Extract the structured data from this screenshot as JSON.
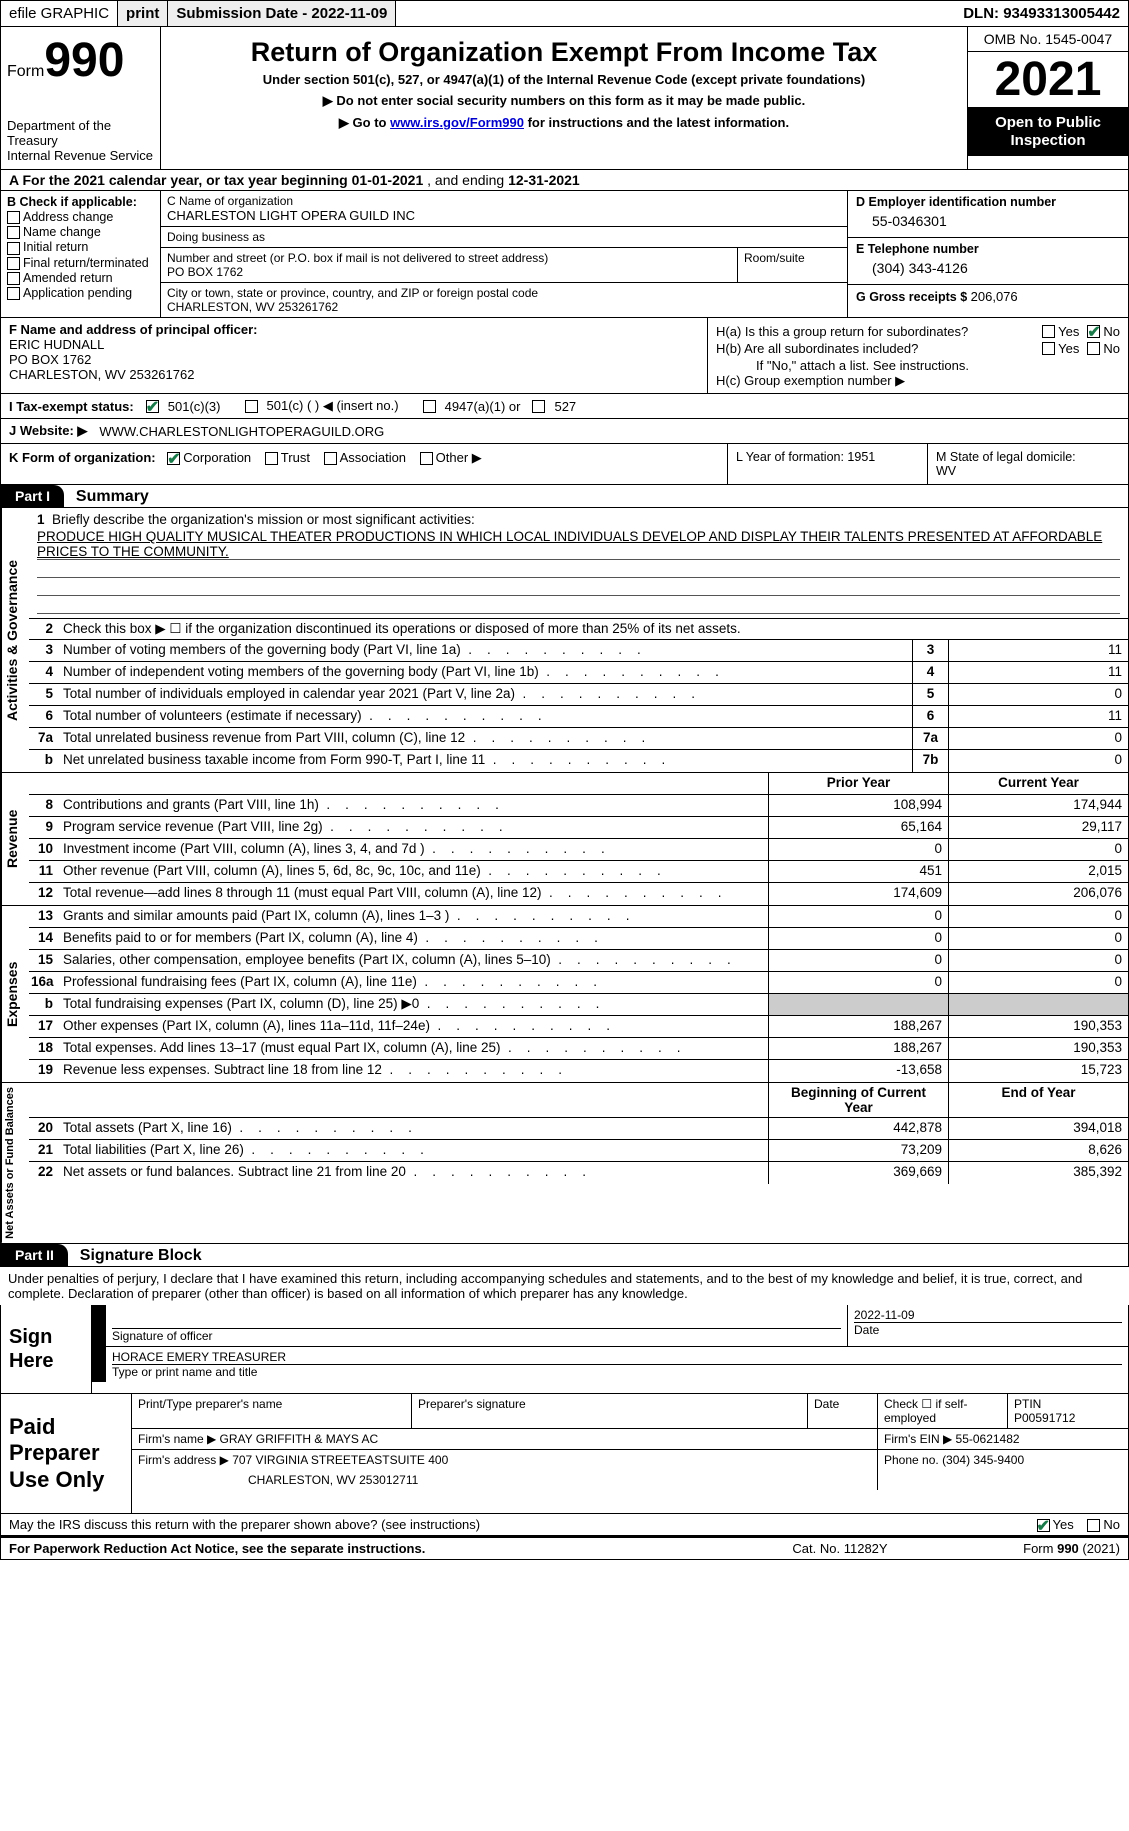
{
  "topbar": {
    "efile": "efile GRAPHIC",
    "print": "print",
    "sub_label": "Submission Date - ",
    "sub_date": "2022-11-09",
    "dln_label": "DLN: ",
    "dln": "93493313005442"
  },
  "header": {
    "form_word": "Form",
    "form_num": "990",
    "dept": "Department of the Treasury\nInternal Revenue Service",
    "title": "Return of Organization Exempt From Income Tax",
    "sub1": "Under section 501(c), 527, or 4947(a)(1) of the Internal Revenue Code (except private foundations)",
    "sub2": "▶ Do not enter social security numbers on this form as it may be made public.",
    "sub3_a": "▶ Go to ",
    "sub3_link": "www.irs.gov/Form990",
    "sub3_b": " for instructions and the latest information.",
    "omb": "OMB No. 1545-0047",
    "year": "2021",
    "inspect": "Open to Public Inspection"
  },
  "row_a": {
    "prefix": "A  For the 2021 calendar year, or tax year beginning ",
    "begin": "01-01-2021",
    "mid": "   , and ending ",
    "end": "12-31-2021"
  },
  "col_b": {
    "label": "B Check if applicable:",
    "items": [
      "Address change",
      "Name change",
      "Initial return",
      "Final return/terminated",
      "Amended return",
      "Application pending"
    ]
  },
  "col_c": {
    "name_label": "C Name of organization",
    "name": "CHARLESTON LIGHT OPERA GUILD INC",
    "dba_label": "Doing business as",
    "addr_label": "Number and street (or P.O. box if mail is not delivered to street address)",
    "addr": "PO BOX 1762",
    "room_label": "Room/suite",
    "city_label": "City or town, state or province, country, and ZIP or foreign postal code",
    "city": "CHARLESTON, WV  253261762"
  },
  "col_d": {
    "d_label": "D Employer identification number",
    "d_val": "55-0346301",
    "e_label": "E Telephone number",
    "e_val": "(304) 343-4126",
    "g_label": "G Gross receipts $ ",
    "g_val": "206,076"
  },
  "row_f": {
    "label": "F Name and address of principal officer:",
    "name": "ERIC HUDNALL",
    "addr1": "PO BOX 1762",
    "addr2": "CHARLESTON, WV  253261762"
  },
  "row_h": {
    "ha": "H(a)  Is this a group return for subordinates?",
    "hb": "H(b)  Are all subordinates included?",
    "hb_note": "If \"No,\" attach a list. See instructions.",
    "hc": "H(c)  Group exemption number ▶",
    "yes": "Yes",
    "no": "No"
  },
  "row_i": {
    "label": "I    Tax-exempt status:",
    "o1": "501(c)(3)",
    "o2": "501(c) (  ) ◀ (insert no.)",
    "o3": "4947(a)(1) or",
    "o4": "527"
  },
  "row_j": {
    "label": "J   Website: ▶",
    "val": "WWW.CHARLESTONLIGHTOPERAGUILD.ORG"
  },
  "row_k": {
    "label": "K Form of organization:",
    "o1": "Corporation",
    "o2": "Trust",
    "o3": "Association",
    "o4": "Other ▶"
  },
  "row_l": {
    "label": "L Year of formation: ",
    "val": "1951"
  },
  "row_m": {
    "label": "M State of legal domicile:",
    "val": "WV"
  },
  "parts": {
    "p1": "Part I",
    "p1t": "Summary",
    "p2": "Part II",
    "p2t": "Signature Block"
  },
  "mission": {
    "num": "1",
    "label": "Briefly describe the organization's mission or most significant activities:",
    "text": "PRODUCE HIGH QUALITY MUSICAL THEATER PRODUCTIONS IN WHICH LOCAL INDIVIDUALS DEVELOP AND DISPLAY THEIR TALENTS PRESENTED AT AFFORDABLE PRICES TO THE COMMUNITY."
  },
  "line2": {
    "num": "2",
    "text": "Check this box ▶ ☐ if the organization discontinued its operations or disposed of more than 25% of its net assets."
  },
  "sections": {
    "gov": "Activities & Governance",
    "rev": "Revenue",
    "exp": "Expenses",
    "net": "Net Assets or Fund Balances"
  },
  "gov_lines": [
    {
      "n": "3",
      "d": "Number of voting members of the governing body (Part VI, line 1a)",
      "b": "3",
      "v": "11"
    },
    {
      "n": "4",
      "d": "Number of independent voting members of the governing body (Part VI, line 1b)",
      "b": "4",
      "v": "11"
    },
    {
      "n": "5",
      "d": "Total number of individuals employed in calendar year 2021 (Part V, line 2a)",
      "b": "5",
      "v": "0"
    },
    {
      "n": "6",
      "d": "Total number of volunteers (estimate if necessary)",
      "b": "6",
      "v": "11"
    },
    {
      "n": "7a",
      "d": "Total unrelated business revenue from Part VIII, column (C), line 12",
      "b": "7a",
      "v": "0"
    },
    {
      "n": "b",
      "d": "Net unrelated business taxable income from Form 990-T, Part I, line 11",
      "b": "7b",
      "v": "0"
    }
  ],
  "cols": {
    "prior": "Prior Year",
    "current": "Current Year",
    "begin": "Beginning of Current Year",
    "end": "End of Year"
  },
  "rev_lines": [
    {
      "n": "8",
      "d": "Contributions and grants (Part VIII, line 1h)",
      "p": "108,994",
      "c": "174,944"
    },
    {
      "n": "9",
      "d": "Program service revenue (Part VIII, line 2g)",
      "p": "65,164",
      "c": "29,117"
    },
    {
      "n": "10",
      "d": "Investment income (Part VIII, column (A), lines 3, 4, and 7d )",
      "p": "0",
      "c": "0"
    },
    {
      "n": "11",
      "d": "Other revenue (Part VIII, column (A), lines 5, 6d, 8c, 9c, 10c, and 11e)",
      "p": "451",
      "c": "2,015"
    },
    {
      "n": "12",
      "d": "Total revenue—add lines 8 through 11 (must equal Part VIII, column (A), line 12)",
      "p": "174,609",
      "c": "206,076"
    }
  ],
  "exp_lines": [
    {
      "n": "13",
      "d": "Grants and similar amounts paid (Part IX, column (A), lines 1–3 )",
      "p": "0",
      "c": "0"
    },
    {
      "n": "14",
      "d": "Benefits paid to or for members (Part IX, column (A), line 4)",
      "p": "0",
      "c": "0"
    },
    {
      "n": "15",
      "d": "Salaries, other compensation, employee benefits (Part IX, column (A), lines 5–10)",
      "p": "0",
      "c": "0"
    },
    {
      "n": "16a",
      "d": "Professional fundraising fees (Part IX, column (A), line 11e)",
      "p": "0",
      "c": "0"
    },
    {
      "n": "b",
      "d": "Total fundraising expenses (Part IX, column (D), line 25) ▶0",
      "p": "",
      "c": "",
      "grey": true
    },
    {
      "n": "17",
      "d": "Other expenses (Part IX, column (A), lines 11a–11d, 11f–24e)",
      "p": "188,267",
      "c": "190,353"
    },
    {
      "n": "18",
      "d": "Total expenses. Add lines 13–17 (must equal Part IX, column (A), line 25)",
      "p": "188,267",
      "c": "190,353"
    },
    {
      "n": "19",
      "d": "Revenue less expenses. Subtract line 18 from line 12",
      "p": "-13,658",
      "c": "15,723"
    }
  ],
  "net_lines": [
    {
      "n": "20",
      "d": "Total assets (Part X, line 16)",
      "p": "442,878",
      "c": "394,018"
    },
    {
      "n": "21",
      "d": "Total liabilities (Part X, line 26)",
      "p": "73,209",
      "c": "8,626"
    },
    {
      "n": "22",
      "d": "Net assets or fund balances. Subtract line 21 from line 20",
      "p": "369,669",
      "c": "385,392"
    }
  ],
  "sig": {
    "penalty": "Under penalties of perjury, I declare that I have examined this return, including accompanying schedules and statements, and to the best of my knowledge and belief, it is true, correct, and complete. Declaration of preparer (other than officer) is based on all information of which preparer has any knowledge.",
    "sign_here": "Sign Here",
    "sig_officer": "Signature of officer",
    "date": "Date",
    "sig_date": "2022-11-09",
    "name_title": "HORACE EMERY  TREASURER",
    "type_name": "Type or print name and title",
    "paid": "Paid Preparer Use Only",
    "prep_name_lbl": "Print/Type preparer's name",
    "prep_sig_lbl": "Preparer's signature",
    "check_if": "Check ☐ if self-employed",
    "ptin_lbl": "PTIN",
    "ptin": "P00591712",
    "firm_name_lbl": "Firm's name      ▶ ",
    "firm_name": "GRAY GRIFFITH & MAYS AC",
    "firm_ein_lbl": "Firm's EIN ▶ ",
    "firm_ein": "55-0621482",
    "firm_addr_lbl": "Firm's address ▶ ",
    "firm_addr1": "707 VIRGINIA STREETEASTSUITE 400",
    "firm_addr2": "CHARLESTON, WV  253012711",
    "phone_lbl": "Phone no. ",
    "phone": "(304) 345-9400"
  },
  "footer": {
    "discuss": "May the IRS discuss this return with the preparer shown above? (see instructions)",
    "yes": "Yes",
    "no": "No",
    "pra": "For Paperwork Reduction Act Notice, see the separate instructions.",
    "cat": "Cat. No. 11282Y",
    "form": "Form 990 (2021)"
  }
}
